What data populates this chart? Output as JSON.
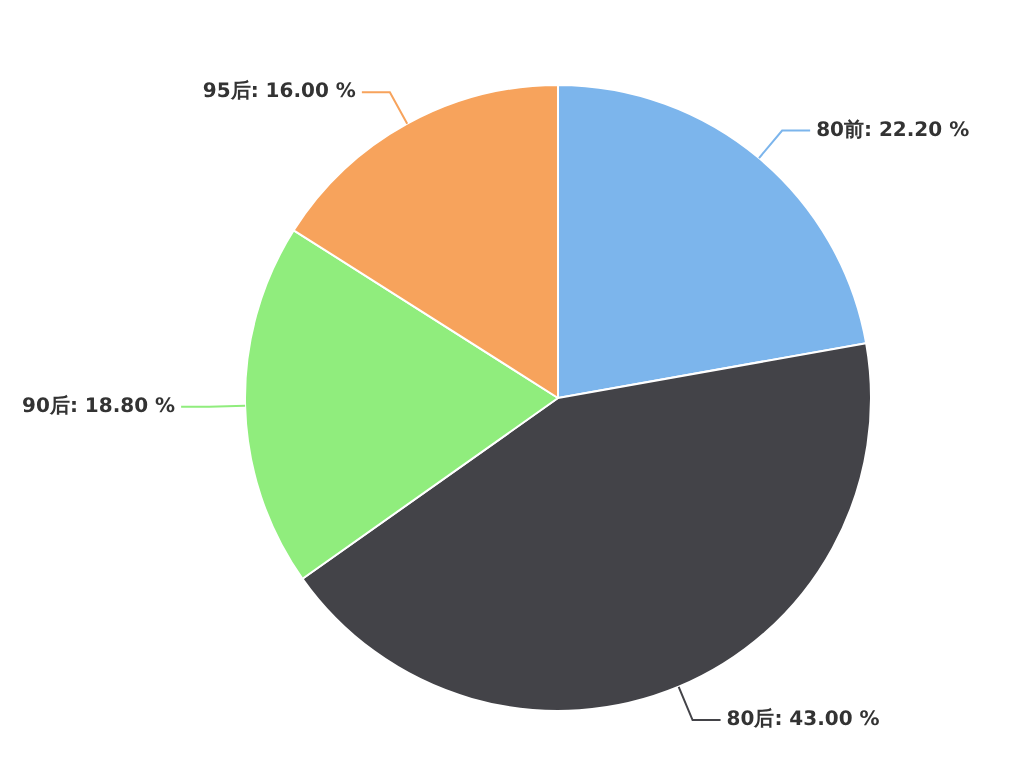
{
  "chart_data": {
    "type": "pie",
    "categories": [
      "80前",
      "80后",
      "90后",
      "95后"
    ],
    "values": [
      22.2,
      43.0,
      18.8,
      16.0
    ],
    "value_labels": [
      "22.20 %",
      "43.00 %",
      "18.80 %",
      "16.00 %"
    ],
    "colors": [
      "#7cb5ec",
      "#434348",
      "#90ed7d",
      "#f7a35c"
    ],
    "legend": false
  }
}
